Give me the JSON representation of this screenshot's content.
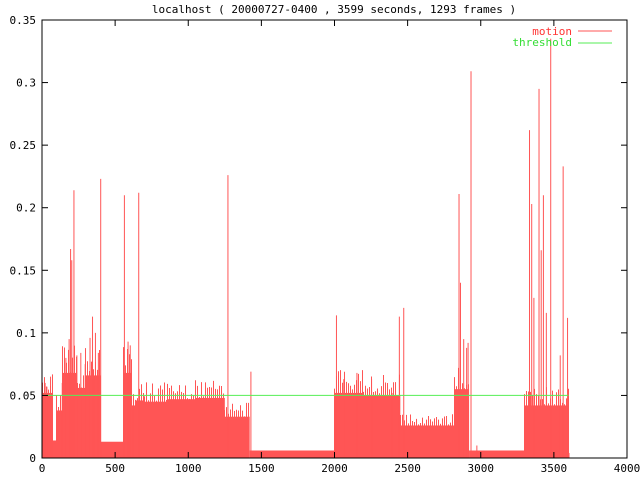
{
  "chart_data": {
    "type": "area",
    "title": "localhost ( 20000727-0400 , 3599 seconds, 1293 frames )",
    "xlabel": "",
    "ylabel": "",
    "xlim": [
      0,
      4000
    ],
    "ylim": [
      0,
      0.35
    ],
    "x_ticks": [
      0,
      500,
      1000,
      1500,
      2000,
      2500,
      3000,
      3500,
      4000
    ],
    "y_ticks": [
      0,
      0.05,
      0.1,
      0.15,
      0.2,
      0.25,
      0.3,
      0.35
    ],
    "x_tick_labels": [
      "0",
      "500",
      "1000",
      "1500",
      "2000",
      "2500",
      "3000",
      "3500",
      "4000"
    ],
    "y_tick_labels": [
      "0",
      "0.05",
      "0.1",
      "0.15",
      "0.2",
      "0.25",
      "0.3",
      "0.35"
    ],
    "grid": false,
    "legend_position": "top-right",
    "series": [
      {
        "name": "motion",
        "color": "#ff5555",
        "style": "impulses",
        "segments": [
          {
            "x0": 0,
            "x1": 75,
            "y": 0.052
          },
          {
            "x0": 75,
            "x1": 100,
            "y": 0.014
          },
          {
            "x0": 100,
            "x1": 140,
            "y": 0.038
          },
          {
            "x0": 140,
            "x1": 240,
            "y": 0.068
          },
          {
            "x0": 240,
            "x1": 300,
            "y": 0.056
          },
          {
            "x0": 300,
            "x1": 400,
            "y": 0.066
          },
          {
            "x0": 400,
            "x1": 555,
            "y": 0.013
          },
          {
            "x0": 555,
            "x1": 610,
            "y": 0.068
          },
          {
            "x0": 610,
            "x1": 640,
            "y": 0.042
          },
          {
            "x0": 640,
            "x1": 700,
            "y": 0.046
          },
          {
            "x0": 700,
            "x1": 860,
            "y": 0.045
          },
          {
            "x0": 860,
            "x1": 1050,
            "y": 0.047
          },
          {
            "x0": 1050,
            "x1": 1250,
            "y": 0.048
          },
          {
            "x0": 1250,
            "x1": 1420,
            "y": 0.033
          },
          {
            "x0": 1420,
            "x1": 2000,
            "y": 0.006
          },
          {
            "x0": 2000,
            "x1": 2200,
            "y": 0.052
          },
          {
            "x0": 2200,
            "x1": 2450,
            "y": 0.05
          },
          {
            "x0": 2450,
            "x1": 2820,
            "y": 0.026
          },
          {
            "x0": 2820,
            "x1": 2920,
            "y": 0.055
          },
          {
            "x0": 2920,
            "x1": 3300,
            "y": 0.006
          },
          {
            "x0": 3300,
            "x1": 3600,
            "y": 0.042
          },
          {
            "x0": 3600,
            "x1": 3600,
            "y": 0.004
          }
        ],
        "spikes": [
          {
            "x": 18,
            "y": 0.06
          },
          {
            "x": 30,
            "y": 0.057
          },
          {
            "x": 55,
            "y": 0.065
          },
          {
            "x": 135,
            "y": 0.06
          },
          {
            "x": 160,
            "y": 0.08
          },
          {
            "x": 182,
            "y": 0.095
          },
          {
            "x": 192,
            "y": 0.167
          },
          {
            "x": 200,
            "y": 0.158
          },
          {
            "x": 215,
            "y": 0.214
          },
          {
            "x": 235,
            "y": 0.082
          },
          {
            "x": 262,
            "y": 0.084
          },
          {
            "x": 292,
            "y": 0.075
          },
          {
            "x": 325,
            "y": 0.096
          },
          {
            "x": 342,
            "y": 0.113
          },
          {
            "x": 362,
            "y": 0.1
          },
          {
            "x": 382,
            "y": 0.084
          },
          {
            "x": 398,
            "y": 0.223
          },
          {
            "x": 560,
            "y": 0.21
          },
          {
            "x": 585,
            "y": 0.093
          },
          {
            "x": 600,
            "y": 0.09
          },
          {
            "x": 622,
            "y": 0.051
          },
          {
            "x": 658,
            "y": 0.212
          },
          {
            "x": 1268,
            "y": 0.226
          },
          {
            "x": 1425,
            "y": 0.069
          },
          {
            "x": 2010,
            "y": 0.114
          },
          {
            "x": 2060,
            "y": 0.063
          },
          {
            "x": 2150,
            "y": 0.068
          },
          {
            "x": 2250,
            "y": 0.063
          },
          {
            "x": 2390,
            "y": 0.052
          },
          {
            "x": 2440,
            "y": 0.113
          },
          {
            "x": 2470,
            "y": 0.12
          },
          {
            "x": 2848,
            "y": 0.211
          },
          {
            "x": 2858,
            "y": 0.14
          },
          {
            "x": 2880,
            "y": 0.095
          },
          {
            "x": 2900,
            "y": 0.088
          },
          {
            "x": 2910,
            "y": 0.092
          },
          {
            "x": 2930,
            "y": 0.309
          },
          {
            "x": 2970,
            "y": 0.01
          },
          {
            "x": 3330,
            "y": 0.262
          },
          {
            "x": 3345,
            "y": 0.203
          },
          {
            "x": 3360,
            "y": 0.128
          },
          {
            "x": 3395,
            "y": 0.295
          },
          {
            "x": 3410,
            "y": 0.166
          },
          {
            "x": 3425,
            "y": 0.21
          },
          {
            "x": 3445,
            "y": 0.116
          },
          {
            "x": 3475,
            "y": 0.335
          },
          {
            "x": 3540,
            "y": 0.082
          },
          {
            "x": 3560,
            "y": 0.233
          },
          {
            "x": 3590,
            "y": 0.112
          }
        ]
      },
      {
        "name": "threshold",
        "color": "#55ee55",
        "style": "line",
        "x": [
          0,
          3600
        ],
        "y": [
          0.05,
          0.05
        ]
      }
    ]
  }
}
